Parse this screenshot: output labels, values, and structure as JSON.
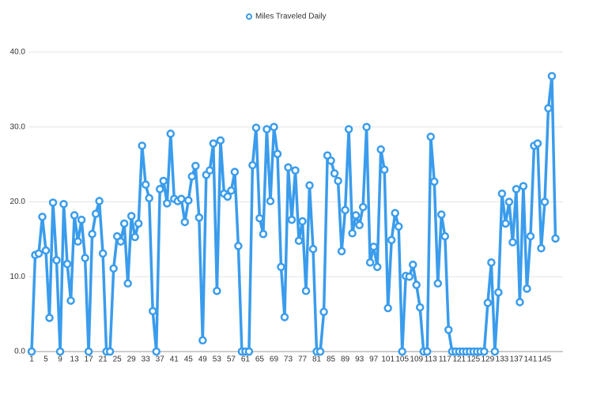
{
  "chart_data": {
    "type": "line",
    "x": [
      1,
      2,
      3,
      4,
      5,
      6,
      7,
      8,
      9,
      10,
      11,
      12,
      13,
      14,
      15,
      16,
      17,
      18,
      19,
      20,
      21,
      22,
      23,
      24,
      25,
      26,
      27,
      28,
      29,
      30,
      31,
      32,
      33,
      34,
      35,
      36,
      37,
      38,
      39,
      40,
      41,
      42,
      43,
      44,
      45,
      46,
      47,
      48,
      49,
      50,
      51,
      52,
      53,
      54,
      55,
      56,
      57,
      58,
      59,
      60,
      61,
      62,
      63,
      64,
      65,
      66,
      67,
      68,
      69,
      70,
      71,
      72,
      73,
      74,
      75,
      76,
      77,
      78,
      79,
      80,
      81,
      82,
      83,
      84,
      85,
      86,
      87,
      88,
      89,
      90,
      91,
      92,
      93,
      94,
      95,
      96,
      97,
      98,
      99,
      100,
      101,
      102,
      103,
      104,
      105,
      106,
      107,
      108,
      109,
      110,
      111,
      112,
      113,
      114,
      115,
      116,
      117,
      118,
      119,
      120,
      121,
      122,
      123,
      124,
      125,
      126,
      127,
      128,
      129,
      130,
      131,
      132,
      133,
      134,
      135,
      136,
      137,
      138,
      139,
      140,
      141,
      142,
      143,
      144,
      145,
      146,
      147,
      148
    ],
    "series": [
      {
        "name": "Miles Traveled Daily",
        "color": "#3a9cec",
        "values": [
          0,
          12.9,
          13.1,
          18,
          13.5,
          4.5,
          19.9,
          12.2,
          0,
          19.7,
          11.7,
          6.8,
          18.2,
          14.7,
          17.6,
          12.5,
          0,
          15.7,
          18.4,
          20.1,
          13.1,
          0,
          0,
          11.1,
          15.4,
          14.7,
          17.1,
          9.1,
          18.1,
          15.3,
          17.1,
          27.5,
          22.3,
          20.5,
          5.4,
          0,
          21.7,
          22.8,
          19.8,
          29.1,
          20.4,
          20.1,
          20.4,
          17.3,
          20.2,
          23.4,
          24.8,
          17.9,
          1.5,
          23.6,
          24.2,
          27.8,
          8.1,
          28.2,
          21.1,
          20.7,
          21.5,
          24,
          14.1,
          0,
          0,
          0,
          24.9,
          29.9,
          17.8,
          15.7,
          29.7,
          20.1,
          30,
          26.4,
          11.3,
          4.6,
          24.6,
          17.6,
          24.2,
          14.8,
          17.4,
          8.1,
          22.2,
          13.7,
          0,
          0,
          5.3,
          26.2,
          25.5,
          23.8,
          22.8,
          13.4,
          18.9,
          29.7,
          15.8,
          18.2,
          16.9,
          19.3,
          30,
          11.9,
          14,
          11.3,
          27,
          24.3,
          5.8,
          14.9,
          18.5,
          16.7,
          0,
          10.1,
          10,
          11.6,
          8.9,
          5.9,
          0,
          0,
          28.7,
          22.7,
          9.1,
          18.3,
          15.4,
          2.9,
          0,
          0,
          0,
          0,
          0,
          0,
          0,
          0,
          0,
          0,
          6.5,
          11.9,
          0,
          7.9,
          21.1,
          17.1,
          20,
          14.6,
          21.7,
          6.6,
          22.1,
          8.4,
          15.4,
          27.5,
          27.8,
          13.8,
          20,
          32.5,
          36.8,
          15.1
        ]
      }
    ],
    "xlim": [
      1,
      148
    ],
    "xticks": [
      1,
      5,
      9,
      13,
      17,
      21,
      25,
      29,
      33,
      37,
      41,
      45,
      49,
      53,
      57,
      61,
      65,
      69,
      73,
      77,
      81,
      85,
      89,
      93,
      97,
      101,
      105,
      109,
      113,
      117,
      121,
      125,
      129,
      133,
      137,
      141,
      145
    ],
    "ylim": [
      0,
      40
    ],
    "yticks": [
      {
        "value": 0,
        "label": "0.0"
      },
      {
        "value": 10,
        "label": "10.0"
      },
      {
        "value": 20,
        "label": "20.0"
      },
      {
        "value": 30,
        "label": "30.0"
      },
      {
        "value": 40,
        "label": "40.0"
      }
    ],
    "grid": true,
    "legend": "top"
  }
}
